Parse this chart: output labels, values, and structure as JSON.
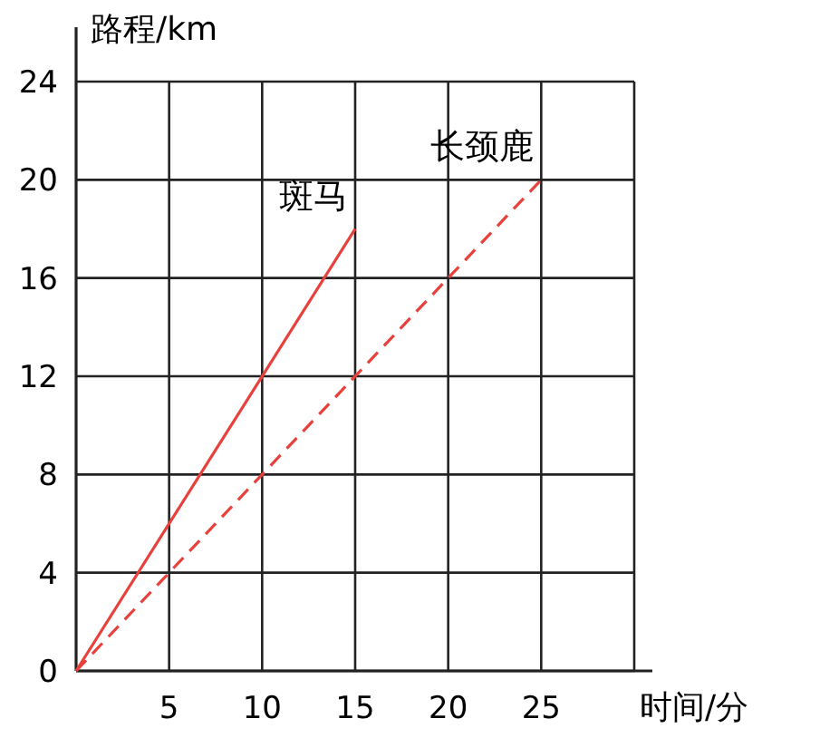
{
  "chart_data": {
    "type": "line",
    "xlabel": "时间/分",
    "ylabel": "路程/km",
    "xlim": [
      0,
      30
    ],
    "ylim": [
      0,
      24
    ],
    "xticks": [
      5,
      10,
      15,
      20,
      25,
      {
        "value": 30,
        "label": null
      }
    ],
    "yticks": [
      0,
      4,
      8,
      12,
      16,
      20,
      24
    ],
    "grid": true,
    "marker": "none",
    "series": [
      {
        "name": "斑马",
        "color": "#e8413c",
        "line_style": "solid",
        "x": [
          0,
          15
        ],
        "values": [
          0,
          18
        ]
      },
      {
        "name": "长颈鹿",
        "color": "#e8413c",
        "line_style": "dashed",
        "x": [
          0,
          25
        ],
        "values": [
          0,
          20
        ]
      }
    ]
  }
}
